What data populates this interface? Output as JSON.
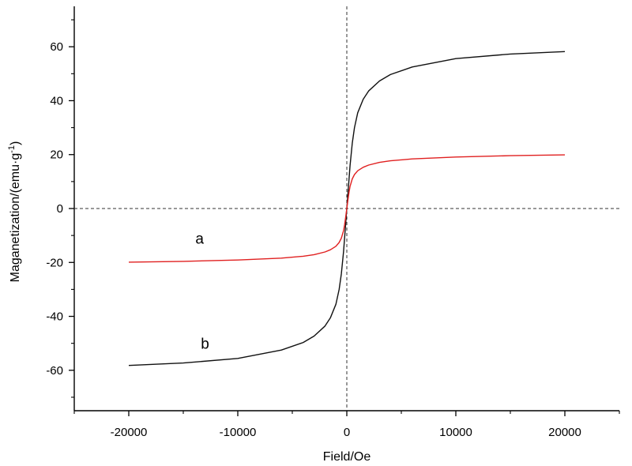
{
  "chart_data": {
    "type": "line",
    "xlabel": "Field/Oe",
    "ylabel": "Maganetization/(emu·g",
    "ylabel_sup": "-1",
    "ylabel_close": ")",
    "xlim": [
      -25000,
      25000
    ],
    "ylim": [
      -75,
      75
    ],
    "x_ticks": [
      -20000,
      -10000,
      0,
      10000,
      20000
    ],
    "x_tick_labels": [
      "-20000",
      "-10000",
      "0",
      "10000",
      "20000"
    ],
    "y_ticks": [
      -60,
      -40,
      -20,
      0,
      20,
      40,
      60
    ],
    "y_tick_labels": [
      "-60",
      "-40",
      "-20",
      "0",
      "20",
      "40",
      "60"
    ],
    "grid": false,
    "reference_lines": {
      "x0_dashed": true,
      "y0_dashed": true
    },
    "series": [
      {
        "name": "a",
        "color": "#e02020",
        "x": [
          -20000,
          -15000,
          -10000,
          -6000,
          -4000,
          -3000,
          -2000,
          -1500,
          -1000,
          -700,
          -500,
          -300,
          -200,
          -100,
          0,
          100,
          200,
          300,
          500,
          700,
          1000,
          1500,
          2000,
          3000,
          4000,
          6000,
          10000,
          15000,
          20000
        ],
        "y": [
          -19.9,
          -19.6,
          -19.1,
          -18.4,
          -17.7,
          -17.1,
          -16.1,
          -15.3,
          -14.0,
          -12.6,
          -11.0,
          -8.2,
          -6.0,
          -3.1,
          0,
          3.1,
          6.0,
          8.2,
          11.0,
          12.6,
          14.0,
          15.3,
          16.1,
          17.1,
          17.7,
          18.4,
          19.1,
          19.6,
          19.9
        ]
      },
      {
        "name": "b",
        "color": "#111111",
        "x": [
          -20000,
          -15000,
          -10000,
          -6000,
          -4000,
          -3000,
          -2000,
          -1500,
          -1000,
          -700,
          -500,
          -300,
          -200,
          -100,
          0,
          100,
          200,
          300,
          500,
          700,
          1000,
          1500,
          2000,
          3000,
          4000,
          6000,
          10000,
          15000,
          20000
        ],
        "y": [
          -58.2,
          -57.3,
          -55.6,
          -52.5,
          -49.7,
          -47.3,
          -43.6,
          -40.5,
          -35.5,
          -30.0,
          -24.2,
          -15.9,
          -10.9,
          -5.5,
          0,
          5.5,
          10.9,
          15.9,
          24.2,
          30.0,
          35.5,
          40.5,
          43.6,
          47.3,
          49.7,
          52.5,
          55.6,
          57.3,
          58.2
        ]
      }
    ],
    "annotations": [
      {
        "text": "a",
        "x": -13500,
        "y": -13
      },
      {
        "text": "b",
        "x": -13000,
        "y": -52
      }
    ]
  }
}
